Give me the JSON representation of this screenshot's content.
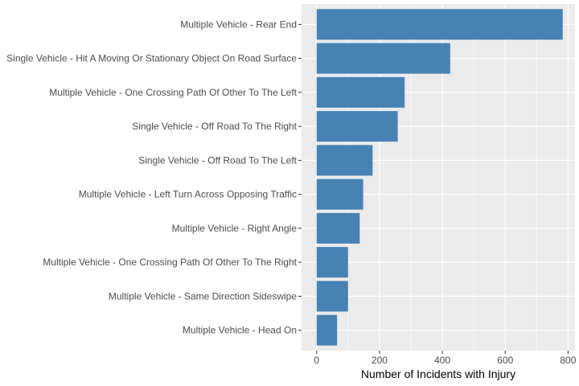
{
  "chart_data": {
    "type": "bar",
    "orientation": "horizontal",
    "title": "",
    "xlabel": "Number of Incidents with Injury",
    "ylabel": "",
    "xlim": [
      -48,
      822
    ],
    "xticks": [
      0,
      200,
      400,
      600,
      800
    ],
    "xtick_labels": [
      "0",
      "200",
      "400",
      "600",
      "800"
    ],
    "grid": true,
    "legend": "none",
    "bar_color": "#4682B4",
    "panel_color": "#EBEBEB",
    "categories": [
      "Multiple Vehicle - Rear End",
      "Single Vehicle - Hit A Moving Or Stationary Object On Road Surface",
      "Multiple Vehicle - One Crossing Path Of Other To The Left",
      "Single Vehicle - Off Road To The Right",
      "Single Vehicle - Off Road To The Left",
      "Multiple Vehicle - Left Turn Across Opposing Traffic",
      "Multiple Vehicle - Right Angle",
      "Multiple Vehicle - One Crossing Path Of Other To The Right",
      "Multiple Vehicle - Same Direction Sideswipe",
      "Multiple Vehicle - Head On"
    ],
    "values": [
      783,
      425,
      280,
      258,
      178,
      148,
      137,
      100,
      100,
      65
    ]
  }
}
